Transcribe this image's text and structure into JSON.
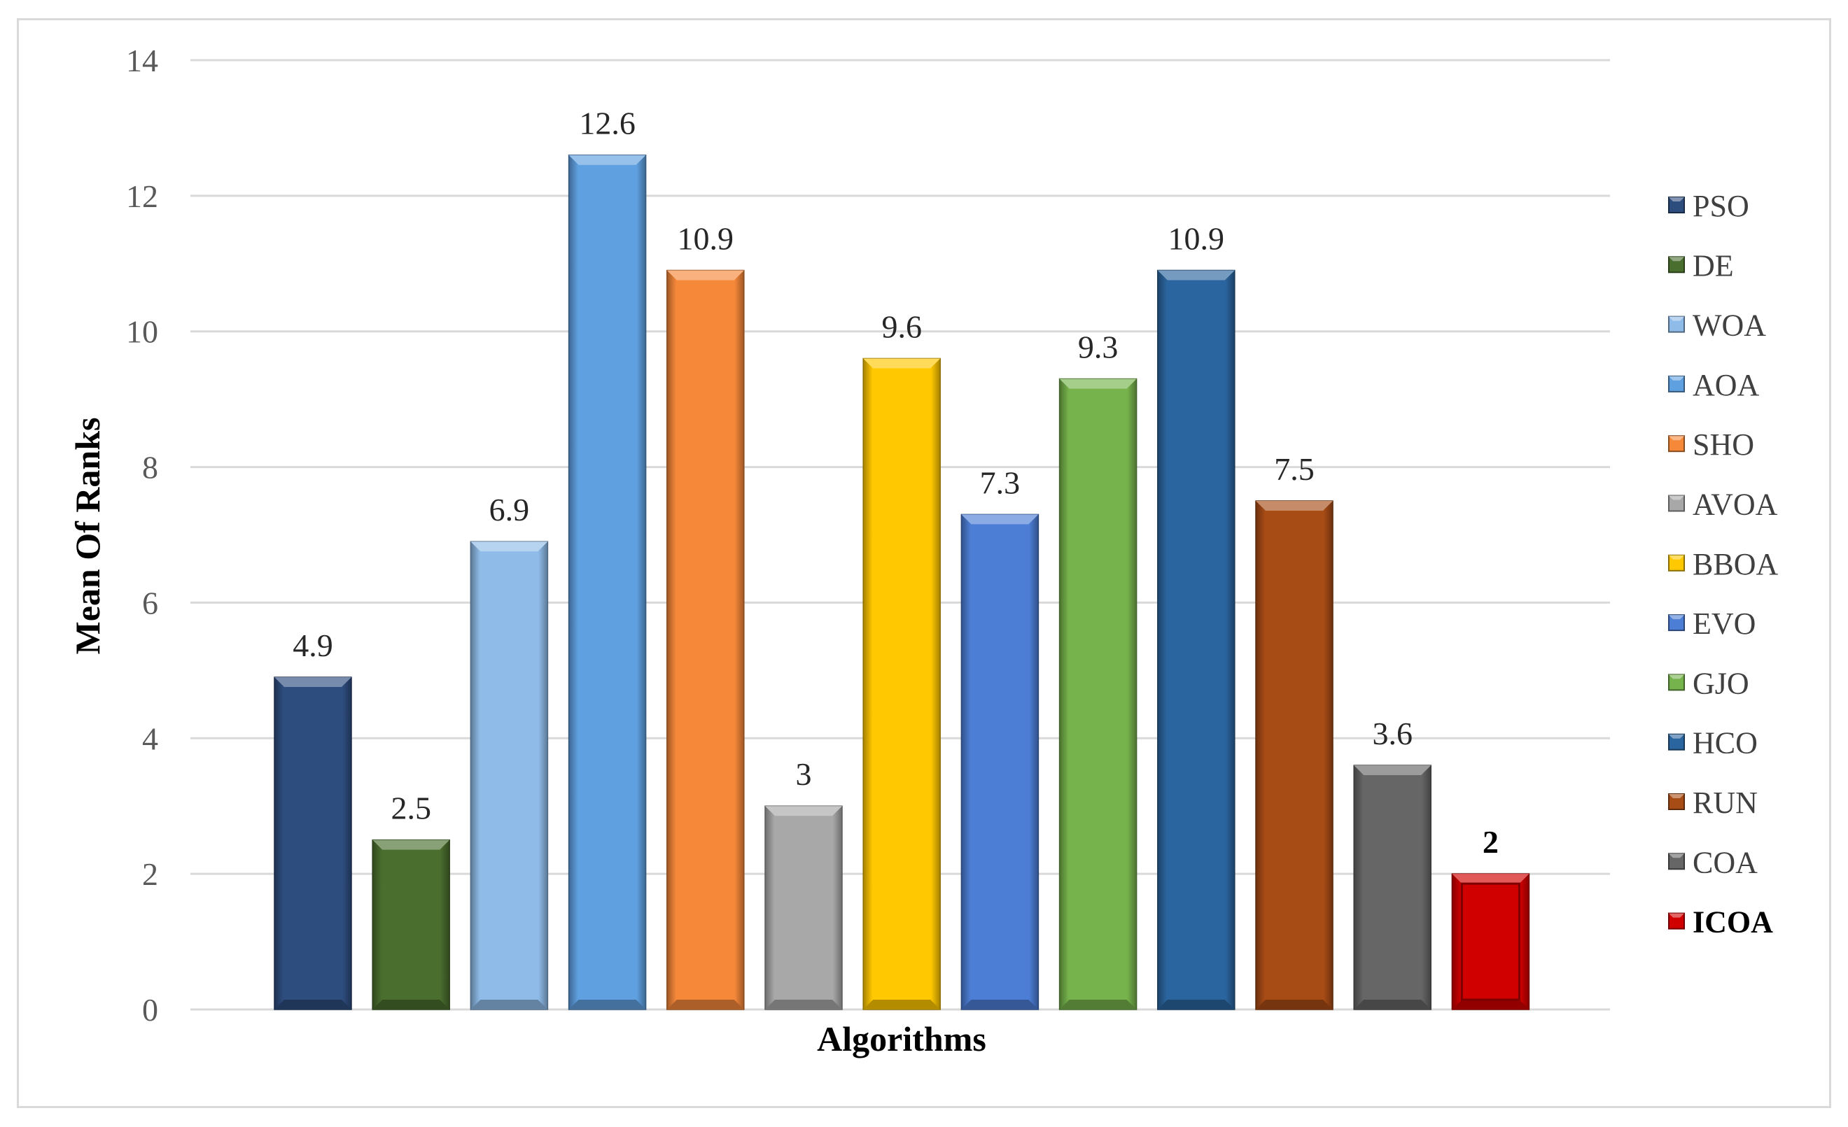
{
  "chart_data": {
    "type": "bar",
    "xlabel": "Algorithms",
    "ylabel": "Mean Of Ranks",
    "ylim": [
      0,
      14
    ],
    "yticks": [
      0,
      2,
      4,
      6,
      8,
      10,
      12,
      14
    ],
    "grid": true,
    "legend_position": "right",
    "categories": [
      "PSO",
      "DE",
      "WOA",
      "AOA",
      "SHO",
      "AVOA",
      "BBOA",
      "EVO",
      "GJO",
      "HCO",
      "RUN",
      "COA",
      "ICOA"
    ],
    "values": [
      4.9,
      2.5,
      6.9,
      12.6,
      10.9,
      3,
      9.6,
      7.3,
      9.3,
      10.9,
      7.5,
      3.6,
      2
    ],
    "labels": [
      "4.9",
      "2.5",
      "6.9",
      "12.6",
      "10.9",
      "3",
      "9.6",
      "7.3",
      "9.3",
      "10.9",
      "7.5",
      "3.6",
      "2"
    ],
    "colors": [
      "#2e4d7f",
      "#4a6e2e",
      "#8fbbe8",
      "#5fa0e0",
      "#f6883a",
      "#a8a8a8",
      "#ffc800",
      "#4d7ed6",
      "#76b34c",
      "#2b659f",
      "#a84c16",
      "#666666",
      "#d10000"
    ],
    "highlight": "ICOA"
  }
}
